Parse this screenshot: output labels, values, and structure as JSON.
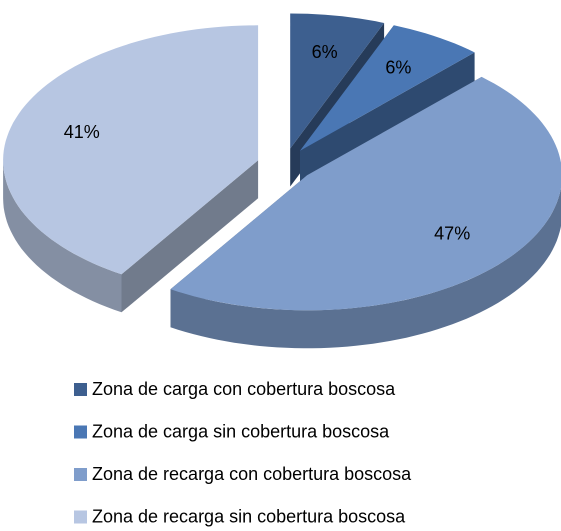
{
  "chart_data": {
    "type": "pie",
    "categories": [
      "Zona de carga con cobertura boscosa",
      "Zona de carga sin cobertura boscosa",
      "Zona de recarga con cobertura boscosa",
      "Zona de recarga sin cobertura boscosa"
    ],
    "values": [
      6,
      6,
      47,
      41
    ],
    "value_labels": [
      "6%",
      "6%",
      "47%",
      "41%"
    ],
    "colors": [
      "#3d5f8f",
      "#4a77b4",
      "#7f9dcb",
      "#b7c6e2"
    ],
    "legend": "bottom"
  }
}
